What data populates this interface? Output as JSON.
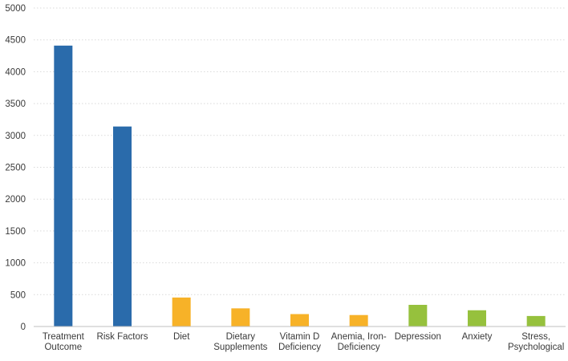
{
  "chart_data": {
    "type": "bar",
    "title": "",
    "xlabel": "",
    "ylabel": "",
    "ylim": [
      0,
      5000
    ],
    "yticks": [
      0,
      500,
      1000,
      1500,
      2000,
      2500,
      3000,
      3500,
      4000,
      4500,
      5000
    ],
    "grid": true,
    "legend": "none",
    "categories": [
      [
        "Treatment",
        "Outcome"
      ],
      [
        "Risk Factors"
      ],
      [
        "Diet"
      ],
      [
        "Dietary",
        "Supplements"
      ],
      [
        "Vitamin D",
        "Deficiency"
      ],
      [
        "Anemia, Iron-",
        "Deficiency"
      ],
      [
        "Depression"
      ],
      [
        "Anxiety"
      ],
      [
        "Stress,",
        "Psychological"
      ]
    ],
    "values": [
      4410,
      3140,
      455,
      285,
      195,
      180,
      340,
      255,
      165
    ],
    "colors": [
      "#2a6bab",
      "#2a6bab",
      "#f7b228",
      "#f7b228",
      "#f7b228",
      "#f7b228",
      "#96c13d",
      "#96c13d",
      "#96c13d"
    ]
  }
}
